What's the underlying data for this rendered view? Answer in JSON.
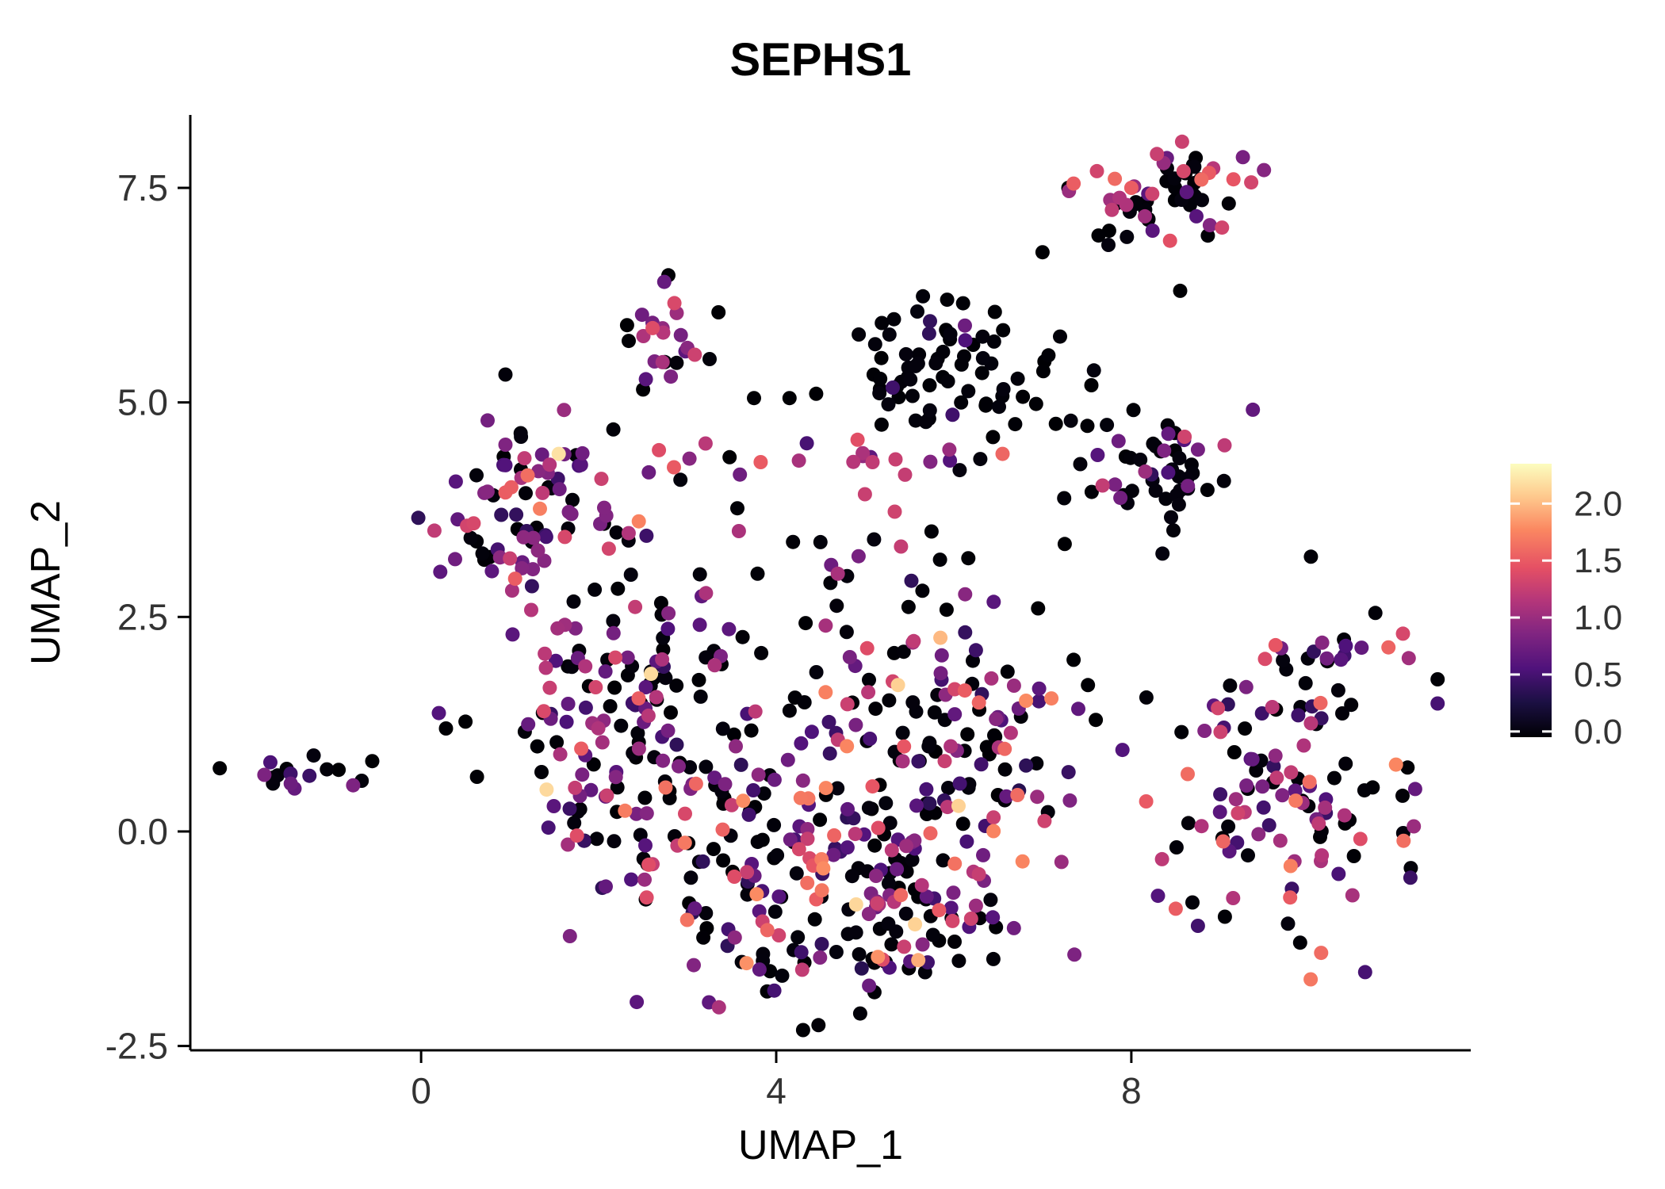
{
  "title": "SEPHS1",
  "chart_data": {
    "type": "scatter",
    "title": "SEPHS1",
    "xlabel": "UMAP_1",
    "ylabel": "UMAP_2",
    "xlim": [
      -2.6,
      11.6
    ],
    "ylim": [
      -2.55,
      8.35
    ],
    "grid": false,
    "legend_position": "right",
    "x_ticks": [
      {
        "value": 0,
        "label": "0"
      },
      {
        "value": 4,
        "label": "4"
      },
      {
        "value": 8,
        "label": "8"
      }
    ],
    "y_ticks": [
      {
        "value": 7.5,
        "label": "7.5"
      },
      {
        "value": 5.0,
        "label": "5.0"
      },
      {
        "value": 2.5,
        "label": "2.5"
      },
      {
        "value": 0.0,
        "label": "0.0"
      },
      {
        "value": -2.5,
        "label": "-2.5"
      }
    ],
    "colorbar": {
      "colormap": "magma",
      "value_range": [
        0,
        2.3
      ],
      "label_ticks": [
        {
          "value": 2.0,
          "label": "2.0"
        },
        {
          "value": 1.5,
          "label": "1.5"
        },
        {
          "value": 1.0,
          "label": "1.0"
        },
        {
          "value": 0.5,
          "label": "0.5"
        },
        {
          "value": 0.0,
          "label": "0.0"
        }
      ],
      "stops": [
        [
          0.0,
          "#000004"
        ],
        [
          0.13,
          "#1c1044"
        ],
        [
          0.25,
          "#4f127b"
        ],
        [
          0.38,
          "#812581"
        ],
        [
          0.5,
          "#b5367a"
        ],
        [
          0.62,
          "#e55064"
        ],
        [
          0.76,
          "#fb8861"
        ],
        [
          0.88,
          "#fec98d"
        ],
        [
          1.0,
          "#fcfdbf"
        ]
      ]
    },
    "point_radius": 9,
    "seed": 42,
    "clusters": [
      {
        "name": "far-left-small",
        "n": 16,
        "cx": -1.35,
        "cy": 0.68,
        "sx": 0.28,
        "sy": 0.1,
        "values": [
          [
            0.6,
            0,
            0.05
          ],
          [
            0.4,
            0.4,
            0.9
          ]
        ]
      },
      {
        "name": "left-main",
        "n": 85,
        "cx": 1.25,
        "cy": 3.7,
        "sx": 0.5,
        "sy": 0.62,
        "values": [
          [
            0.45,
            0,
            0.05
          ],
          [
            0.33,
            0.4,
            0.95
          ],
          [
            0.16,
            1.0,
            1.4
          ],
          [
            0.06,
            1.45,
            1.75
          ]
        ]
      },
      {
        "name": "left-tail",
        "n": 35,
        "cx": 1.85,
        "cy": 1.9,
        "sx": 0.45,
        "sy": 0.55,
        "values": [
          [
            0.45,
            0,
            0.05
          ],
          [
            0.38,
            0.4,
            0.95
          ],
          [
            0.17,
            1.0,
            1.4
          ]
        ]
      },
      {
        "name": "mid-left-band",
        "n": 25,
        "cx": 2.6,
        "cy": 2.4,
        "sx": 0.35,
        "sy": 0.6,
        "values": [
          [
            0.55,
            0,
            0.05
          ],
          [
            0.35,
            0.4,
            0.9
          ],
          [
            0.1,
            1.0,
            1.3
          ]
        ]
      },
      {
        "name": "band-4-3",
        "n": 22,
        "cx": 4.3,
        "cy": 4.32,
        "sx": 1.05,
        "sy": 0.13,
        "values": [
          [
            0.3,
            0,
            0.05
          ],
          [
            0.4,
            0.5,
            1.0
          ],
          [
            0.3,
            1.05,
            1.5
          ]
        ]
      },
      {
        "name": "top-middle",
        "n": 22,
        "cx": 2.75,
        "cy": 5.75,
        "sx": 0.22,
        "sy": 0.33,
        "values": [
          [
            0.25,
            0,
            0.05
          ],
          [
            0.45,
            0.6,
            1.1
          ],
          [
            0.3,
            1.1,
            1.45
          ]
        ]
      },
      {
        "name": "upper-central",
        "n": 75,
        "cx": 5.9,
        "cy": 5.3,
        "sx": 0.62,
        "sy": 0.45,
        "values": [
          [
            0.9,
            0,
            0.05
          ],
          [
            0.1,
            0.4,
            0.9
          ]
        ]
      },
      {
        "name": "mid-sparse",
        "n": 25,
        "cx": 5.0,
        "cy": 2.95,
        "sx": 0.85,
        "sy": 0.4,
        "values": [
          [
            0.6,
            0,
            0.05
          ],
          [
            0.3,
            0.4,
            0.9
          ],
          [
            0.1,
            1.0,
            1.35
          ]
        ]
      },
      {
        "name": "right-upper",
        "n": 50,
        "cx": 8.15,
        "cy": 4.25,
        "sx": 0.45,
        "sy": 0.4,
        "values": [
          [
            0.72,
            0,
            0.05
          ],
          [
            0.22,
            0.4,
            0.95
          ],
          [
            0.06,
            1.0,
            1.4
          ]
        ]
      },
      {
        "name": "top-right",
        "n": 60,
        "cx": 8.4,
        "cy": 7.45,
        "sx": 0.5,
        "sy": 0.28,
        "values": [
          [
            0.45,
            0,
            0.05
          ],
          [
            0.33,
            0.6,
            1.1
          ],
          [
            0.16,
            1.1,
            1.4
          ],
          [
            0.06,
            1.4,
            1.6
          ]
        ]
      },
      {
        "name": "blob-left",
        "n": 70,
        "cx": 2.2,
        "cy": 0.6,
        "sx": 0.5,
        "sy": 0.8,
        "values": [
          [
            0.42,
            0,
            0.05
          ],
          [
            0.36,
            0.35,
            0.95
          ],
          [
            0.15,
            1.0,
            1.4
          ],
          [
            0.06,
            1.45,
            1.8
          ],
          [
            0.01,
            1.9,
            2.2
          ]
        ]
      },
      {
        "name": "blob-midleft",
        "n": 80,
        "cx": 3.3,
        "cy": 0.15,
        "sx": 0.65,
        "sy": 0.9,
        "values": [
          [
            0.42,
            0,
            0.05
          ],
          [
            0.36,
            0.35,
            0.95
          ],
          [
            0.15,
            1.0,
            1.4
          ],
          [
            0.06,
            1.45,
            1.8
          ],
          [
            0.01,
            1.9,
            2.2
          ]
        ]
      },
      {
        "name": "blob-center",
        "n": 90,
        "cx": 4.6,
        "cy": 0.3,
        "sx": 0.75,
        "sy": 0.9,
        "values": [
          [
            0.42,
            0,
            0.05
          ],
          [
            0.36,
            0.35,
            0.95
          ],
          [
            0.15,
            1.0,
            1.4
          ],
          [
            0.06,
            1.45,
            1.8
          ],
          [
            0.01,
            1.9,
            2.2
          ]
        ]
      },
      {
        "name": "blob-midright",
        "n": 80,
        "cx": 5.6,
        "cy": -0.25,
        "sx": 0.65,
        "sy": 0.8,
        "values": [
          [
            0.42,
            0,
            0.05
          ],
          [
            0.36,
            0.35,
            0.95
          ],
          [
            0.15,
            1.0,
            1.4
          ],
          [
            0.06,
            1.45,
            1.8
          ],
          [
            0.01,
            1.9,
            2.2
          ]
        ]
      },
      {
        "name": "blob-bottom",
        "n": 45,
        "cx": 4.8,
        "cy": -1.45,
        "sx": 0.9,
        "sy": 0.35,
        "values": [
          [
            0.42,
            0,
            0.05
          ],
          [
            0.36,
            0.35,
            0.95
          ],
          [
            0.15,
            1.0,
            1.4
          ],
          [
            0.06,
            1.45,
            1.8
          ],
          [
            0.01,
            1.9,
            2.2
          ]
        ]
      },
      {
        "name": "blob-upper-right",
        "n": 45,
        "cx": 5.85,
        "cy": 1.6,
        "sx": 0.6,
        "sy": 0.5,
        "values": [
          [
            0.42,
            0,
            0.05
          ],
          [
            0.36,
            0.35,
            0.95
          ],
          [
            0.15,
            1.0,
            1.4
          ],
          [
            0.06,
            1.45,
            1.8
          ],
          [
            0.01,
            1.9,
            2.2
          ]
        ]
      },
      {
        "name": "blob-right",
        "n": 30,
        "cx": 6.55,
        "cy": 0.9,
        "sx": 0.4,
        "sy": 0.6,
        "values": [
          [
            0.42,
            0,
            0.05
          ],
          [
            0.36,
            0.35,
            0.95
          ],
          [
            0.15,
            1.0,
            1.4
          ],
          [
            0.06,
            1.45,
            1.8
          ],
          [
            0.01,
            1.9,
            2.2
          ]
        ]
      },
      {
        "name": "right-lower",
        "n": 130,
        "cx": 9.75,
        "cy": 0.7,
        "sx": 0.72,
        "sy": 0.85,
        "values": [
          [
            0.36,
            0,
            0.05
          ],
          [
            0.3,
            0.4,
            0.95
          ],
          [
            0.21,
            1.0,
            1.4
          ],
          [
            0.12,
            1.45,
            1.8
          ],
          [
            0.01,
            1.9,
            2.1
          ]
        ]
      }
    ],
    "extra_points": [
      [
        -0.55,
        0.82,
        0
      ],
      [
        0.28,
        1.2,
        0
      ],
      [
        0.2,
        1.38,
        0.6
      ],
      [
        0.5,
        1.28,
        0
      ],
      [
        2.5,
        5.15,
        0
      ],
      [
        2.32,
        5.9,
        0
      ],
      [
        3.35,
        6.05,
        0
      ],
      [
        3.75,
        5.05,
        0
      ],
      [
        4.15,
        5.05,
        0
      ],
      [
        4.45,
        5.1,
        0
      ],
      [
        7.0,
        6.75,
        0
      ],
      [
        8.55,
        6.3,
        0
      ],
      [
        7.35,
        7.55,
        1.5
      ],
      [
        9.15,
        7.6,
        1.45
      ],
      [
        7.75,
        7.0,
        0
      ],
      [
        8.0,
        7.5,
        1.5
      ],
      [
        7.55,
        5.2,
        0
      ],
      [
        7.15,
        4.75,
        0
      ],
      [
        8.6,
        4.6,
        1.3
      ],
      [
        8.75,
        4.45,
        0.8
      ],
      [
        9.05,
        4.5,
        1.2
      ],
      [
        7.25,
        3.35,
        0
      ],
      [
        6.95,
        2.6,
        0
      ],
      [
        7.1,
        1.55,
        1.7
      ],
      [
        7.35,
        2.0,
        0
      ],
      [
        7.6,
        1.3,
        0
      ],
      [
        7.9,
        0.95,
        0.6
      ],
      [
        8.5,
        -0.9,
        1.5
      ],
      [
        8.3,
        -0.75,
        0.6
      ],
      [
        8.75,
        -1.1,
        0.5
      ],
      [
        4.9,
        -0.85,
        2.1
      ],
      [
        5.6,
        -1.5,
        1.9
      ],
      [
        4.35,
        -0.6,
        1.6
      ],
      [
        3.9,
        -1.15,
        1.55
      ],
      [
        1.55,
        4.4,
        2.15
      ],
      [
        1.2,
        4.15,
        1.6
      ],
      [
        0.95,
        3.95,
        1.5
      ],
      [
        2.45,
        1.55,
        1.5
      ],
      [
        6.55,
        4.4,
        1.55
      ],
      [
        5.95,
        4.45,
        1.0
      ],
      [
        10.15,
        2.2,
        0.9
      ],
      [
        10.4,
        2.05,
        0.5
      ]
    ]
  }
}
